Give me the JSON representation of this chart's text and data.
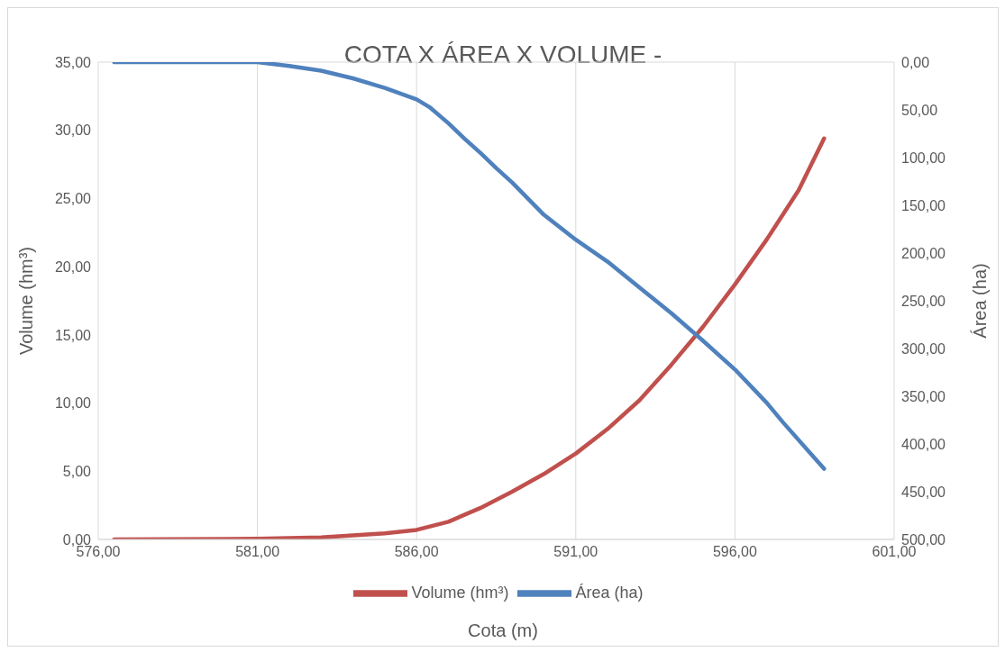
{
  "chart_data": {
    "type": "line",
    "title": "COTA X ÁREA X VOLUME -",
    "xlabel": "Cota (m)",
    "ylabel": "Volume (hm³)",
    "y2label": "Área (ha)",
    "xlim": [
      576,
      601
    ],
    "xticks": [
      {
        "value": 576,
        "label": "576,00"
      },
      {
        "value": 581,
        "label": "581,00"
      },
      {
        "value": 586,
        "label": "586,00"
      },
      {
        "value": 591,
        "label": "591,00"
      },
      {
        "value": 596,
        "label": "596,00"
      },
      {
        "value": 601,
        "label": "601,00"
      }
    ],
    "ylim": [
      0,
      35
    ],
    "yticks": [
      {
        "value": 0,
        "label": "0,00"
      },
      {
        "value": 5,
        "label": "5,00"
      },
      {
        "value": 10,
        "label": "10,00"
      },
      {
        "value": 15,
        "label": "15,00"
      },
      {
        "value": 20,
        "label": "20,00"
      },
      {
        "value": 25,
        "label": "25,00"
      },
      {
        "value": 30,
        "label": "30,00"
      },
      {
        "value": 35,
        "label": "35,00"
      }
    ],
    "y2lim": [
      500,
      0
    ],
    "y2ticks": [
      {
        "value": 0,
        "label": "0,00"
      },
      {
        "value": 50,
        "label": "50,00"
      },
      {
        "value": 100,
        "label": "100,00"
      },
      {
        "value": 150,
        "label": "150,00"
      },
      {
        "value": 200,
        "label": "200,00"
      },
      {
        "value": 250,
        "label": "250,00"
      },
      {
        "value": 300,
        "label": "300,00"
      },
      {
        "value": 350,
        "label": "350,00"
      },
      {
        "value": 400,
        "label": "400,00"
      },
      {
        "value": 450,
        "label": "450,00"
      },
      {
        "value": 500,
        "label": "500,00"
      }
    ],
    "grid": true,
    "legend": "bottom",
    "marker": "none",
    "line_style": "solid",
    "series": [
      {
        "name": "Volume (hm³)",
        "color": "#c0504d",
        "x": [
          576.5,
          581,
          583,
          585,
          586,
          587,
          588,
          589,
          590,
          591,
          592,
          593,
          594,
          595,
          596,
          597,
          598,
          598.8
        ],
        "values": [
          0,
          0.05,
          0.15,
          0.45,
          0.7,
          1.3,
          2.3,
          3.5,
          4.8,
          6.3,
          8.1,
          10.2,
          12.8,
          15.6,
          18.7,
          22,
          25.6,
          29.4
        ]
      },
      {
        "name": "Área (ha)",
        "color": "#4f81bd",
        "axis": "y2",
        "x": [
          576.5,
          581,
          582,
          583,
          584,
          585,
          586,
          586.4,
          587,
          587.5,
          588,
          588.5,
          589,
          590,
          591,
          592,
          593,
          594,
          595,
          596,
          597,
          597.5,
          598.8
        ],
        "values": [
          0,
          0,
          4,
          9,
          17,
          27,
          39,
          47,
          64,
          80,
          95,
          111,
          126,
          160,
          186,
          209,
          236,
          263,
          292,
          322,
          357,
          377,
          426
        ]
      }
    ]
  }
}
